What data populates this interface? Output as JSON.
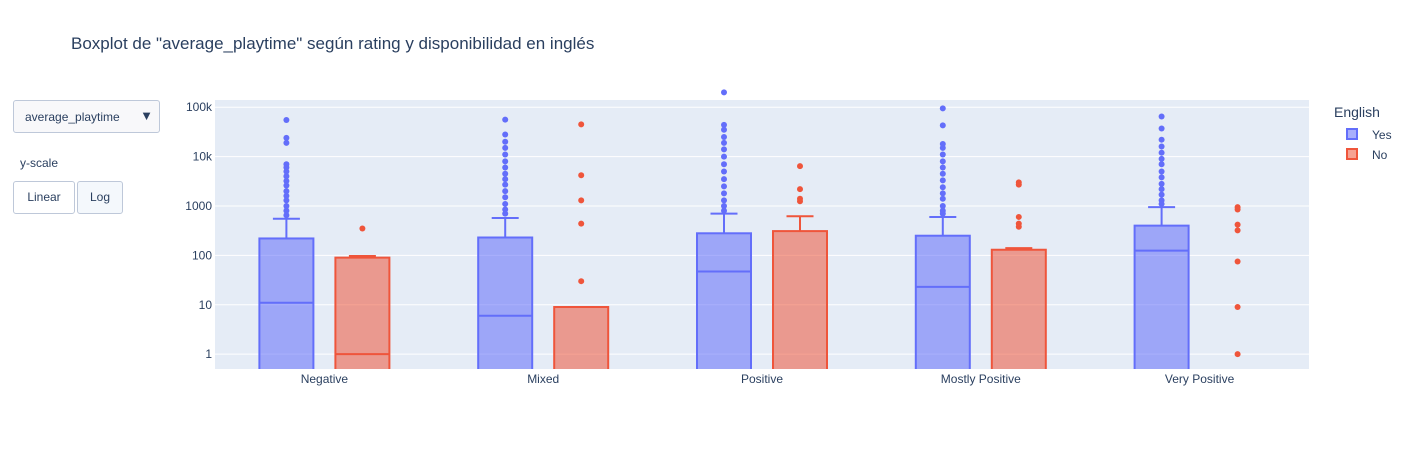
{
  "title": "Boxplot de \"average_playtime\" según rating y disponibilidad en inglés",
  "controls": {
    "dropdown_value": "average_playtime",
    "dropdown_caret": "▼",
    "yscale_label": "y-scale",
    "linear_label": "Linear",
    "log_label": "Log",
    "active_scale": "Log"
  },
  "legend": {
    "title": "English",
    "items": [
      {
        "label": "Yes",
        "color": "#636efa"
      },
      {
        "label": "No",
        "color": "#ef553b"
      }
    ]
  },
  "chart_data": {
    "type": "box",
    "title": "Boxplot de \"average_playtime\" según rating y disponibilidad en inglés",
    "xlabel": "",
    "ylabel": "",
    "yscale": "log",
    "ylim": [
      0.5,
      140000
    ],
    "grid": true,
    "legend_position": "right",
    "categories": [
      "Negative",
      "Mixed",
      "Positive",
      "Mostly Positive",
      "Very Positive"
    ],
    "yticks": [
      {
        "value": 1,
        "label": "1"
      },
      {
        "value": 10,
        "label": "10"
      },
      {
        "value": 100,
        "label": "100"
      },
      {
        "value": 1000,
        "label": "1000"
      },
      {
        "value": 10000,
        "label": "10k"
      },
      {
        "value": 100000,
        "label": "100k"
      }
    ],
    "series": [
      {
        "name": "Yes",
        "color": "#636efa",
        "fill": "rgba(99,110,250,0.55)",
        "boxes": [
          {
            "category": "Negative",
            "min": 0,
            "q1": 0,
            "median": 11,
            "q3": 220,
            "upper_fence": 550,
            "outliers": [
              55000,
              24000,
              19000,
              7000,
              6000,
              5000,
              4000,
              3200,
              2600,
              2000,
              1600,
              1300,
              1000,
              800,
              650
            ]
          },
          {
            "category": "Mixed",
            "min": 0,
            "q1": 0,
            "median": 6,
            "q3": 230,
            "upper_fence": 570,
            "outliers": [
              56000,
              28000,
              20000,
              15000,
              11000,
              8000,
              6000,
              4500,
              3500,
              2700,
              2000,
              1500,
              1100,
              850,
              700
            ]
          },
          {
            "category": "Positive",
            "min": 0,
            "q1": 0,
            "median": 47,
            "q3": 280,
            "upper_fence": 700,
            "outliers": [
              200000,
              44000,
              35000,
              25000,
              19000,
              14000,
              10000,
              7000,
              5000,
              3500,
              2500,
              1800,
              1300,
              1000,
              800
            ]
          },
          {
            "category": "Mostly Positive",
            "min": 0,
            "q1": 0,
            "median": 23,
            "q3": 250,
            "upper_fence": 600,
            "outliers": [
              95000,
              43000,
              18000,
              15000,
              11000,
              8000,
              6000,
              4500,
              3300,
              2400,
              1800,
              1400,
              1000,
              800,
              700
            ]
          },
          {
            "category": "Very Positive",
            "min": 0,
            "q1": 0,
            "median": 125,
            "q3": 400,
            "upper_fence": 950,
            "outliers": [
              65000,
              37000,
              22000,
              16000,
              12000,
              9000,
              7000,
              5000,
              3800,
              2800,
              2200,
              1700,
              1300,
              1100
            ]
          }
        ]
      },
      {
        "name": "No",
        "color": "#ef553b",
        "fill": "rgba(239,85,59,0.55)",
        "boxes": [
          {
            "category": "Negative",
            "min": 0,
            "q1": 0,
            "median": 1,
            "q3": 90,
            "upper_fence": 97,
            "outliers": [
              350
            ]
          },
          {
            "category": "Mixed",
            "min": 0,
            "q1": 0,
            "median": 0,
            "q3": 9,
            "upper_fence": 9,
            "outliers": [
              45000,
              4200,
              1300,
              440,
              30
            ]
          },
          {
            "category": "Positive",
            "min": 0,
            "q1": 0,
            "median": 0,
            "q3": 310,
            "upper_fence": 620,
            "outliers": [
              6400,
              2200,
              1400,
              1250
            ]
          },
          {
            "category": "Mostly Positive",
            "min": 0,
            "q1": 0,
            "median": 0,
            "q3": 130,
            "upper_fence": 140,
            "outliers": [
              3000,
              2700,
              600,
              440,
              380
            ]
          },
          {
            "category": "Very Positive",
            "min": null,
            "q1": null,
            "median": null,
            "q3": null,
            "upper_fence": null,
            "outliers": [
              950,
              850,
              420,
              320,
              75,
              9,
              1
            ]
          }
        ]
      }
    ]
  }
}
